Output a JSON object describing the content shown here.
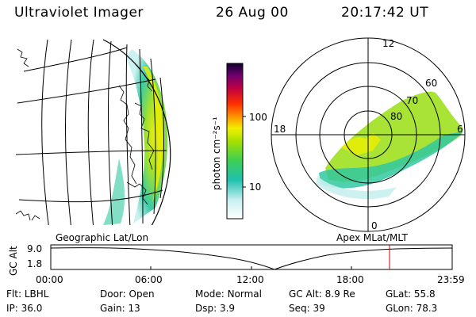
{
  "header": {
    "instrument": "Ultraviolet Imager",
    "date": "26 Aug 00",
    "time": "20:17:42 UT"
  },
  "panels": {
    "left_label": "Geographic Lat/Lon",
    "right_label": "Apex MLat/MLT"
  },
  "colorbar": {
    "label": "photon cm⁻²s⁻¹",
    "ticks": [
      "100",
      "10"
    ]
  },
  "polar_plot": {
    "mlt_labels": [
      "12",
      "18",
      "6",
      "0"
    ],
    "lat_labels": [
      "60",
      "70",
      "80"
    ]
  },
  "altitude_plot": {
    "ylabel": "GC Alt",
    "y_ticks": [
      "9.0",
      "1.8"
    ],
    "x_ticks": [
      "00:00",
      "06:00",
      "12:00",
      "18:00",
      "23:59"
    ],
    "marker_color": "#cc0000"
  },
  "footer": {
    "row1": [
      {
        "label": "Flt:",
        "value": "LBHL"
      },
      {
        "label": "Door:",
        "value": "Open"
      },
      {
        "label": "Mode:",
        "value": "Normal"
      },
      {
        "label": "GC Alt:",
        "value": "8.9 Re"
      },
      {
        "label": "GLat:",
        "value": "55.8"
      }
    ],
    "row2": [
      {
        "label": "IP:",
        "value": "36.0"
      },
      {
        "label": "Gain:",
        "value": "13"
      },
      {
        "label": "Dsp:",
        "value": "3.9"
      },
      {
        "label": "Seq:",
        "value": "39"
      },
      {
        "label": "GLon:",
        "value": "78.3"
      }
    ]
  },
  "colors": {
    "aurora_low": "#28c4a0",
    "aurora_mid": "#7ede1c",
    "aurora_high": "#eeee00",
    "aurora_peak": "#ffa000"
  }
}
